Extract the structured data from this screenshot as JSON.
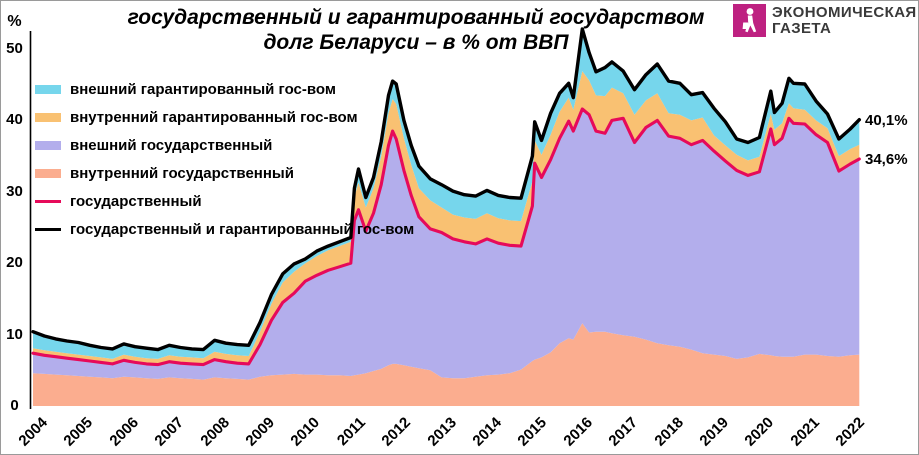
{
  "title": {
    "line1": "государственный и гарантированный государством",
    "line2": "долг Беларуси – в % от ВВП"
  },
  "logo": {
    "text_line1": "ЭКОНОМИЧЕСКАЯ",
    "text_line2": "ГАЗЕТА",
    "square_color": "#BE2181",
    "icon": "walking-person-with-bag"
  },
  "annotations": [
    {
      "text": "40,1%",
      "value": 40.1
    },
    {
      "text": "34,6%",
      "value": 34.6
    }
  ],
  "legend": [
    {
      "id": "external-guaranteed",
      "label": "внешний гарантированный гос-вом",
      "color": "#76D6EC",
      "swatch": "area"
    },
    {
      "id": "internal-guaranteed",
      "label": "внутренний гарантированный гос-вом",
      "color": "#F9C172",
      "swatch": "area"
    },
    {
      "id": "external-gov",
      "label": "внешний государственный",
      "color": "#B3AEEC",
      "swatch": "area"
    },
    {
      "id": "internal-gov",
      "label": "внутренний государственный",
      "color": "#FBAD8F",
      "swatch": "area"
    },
    {
      "id": "gov-line",
      "label": "государственный",
      "color": "#E60A5A",
      "swatch": "line"
    },
    {
      "id": "total-line",
      "label": "государственный и гарантированный гос-вом",
      "color": "#000000",
      "swatch": "line"
    }
  ],
  "chart_data": {
    "type": "area",
    "subtype": "stacked-area-with-total-lines",
    "title": "государственный и гарантированный государством долг Беларуси – в % от ВВП",
    "ylabel": "%",
    "ylim": [
      0,
      50
    ],
    "y_ticks": [
      50,
      40,
      30,
      20,
      10,
      0
    ],
    "x_ticks": [
      "2004",
      "2005",
      "2006",
      "2007",
      "2008",
      "2009",
      "2010",
      "2011",
      "2012",
      "2013",
      "2014",
      "2015",
      "2016",
      "2017",
      "2018",
      "2019",
      "2020",
      "2021",
      "2022"
    ],
    "x_range": [
      2004.0,
      2022.2
    ],
    "grid": false,
    "legend_position": "top-left",
    "x": [
      2004.0,
      2004.25,
      2004.5,
      2004.75,
      2005.0,
      2005.25,
      2005.5,
      2005.75,
      2006.0,
      2006.25,
      2006.5,
      2006.75,
      2007.0,
      2007.25,
      2007.5,
      2007.75,
      2008.0,
      2008.25,
      2008.5,
      2008.75,
      2009.0,
      2009.25,
      2009.5,
      2009.75,
      2010.0,
      2010.25,
      2010.5,
      2010.75,
      2011.0,
      2011.08,
      2011.17,
      2011.33,
      2011.5,
      2011.67,
      2011.83,
      2011.92,
      2012.0,
      2012.17,
      2012.33,
      2012.5,
      2012.75,
      2013.0,
      2013.25,
      2013.5,
      2013.75,
      2014.0,
      2014.25,
      2014.5,
      2014.75,
      2015.0,
      2015.05,
      2015.2,
      2015.4,
      2015.6,
      2015.8,
      2015.9,
      2016.1,
      2016.25,
      2016.4,
      2016.6,
      2016.75,
      2017.0,
      2017.25,
      2017.5,
      2017.75,
      2018.0,
      2018.25,
      2018.5,
      2018.75,
      2019.0,
      2019.25,
      2019.5,
      2019.75,
      2020.0,
      2020.25,
      2020.33,
      2020.5,
      2020.65,
      2020.75,
      2021.0,
      2021.25,
      2021.5,
      2021.75,
      2022.0,
      2022.2
    ],
    "areas": [
      {
        "id": "internal-gov",
        "label": "внутренний государственный",
        "color": "#FBAD8F",
        "values": [
          4.6,
          4.5,
          4.4,
          4.3,
          4.2,
          4.1,
          4.0,
          3.9,
          4.1,
          4.0,
          3.9,
          3.8,
          4.0,
          3.9,
          3.8,
          3.7,
          4.0,
          3.9,
          3.8,
          3.7,
          4.1,
          4.3,
          4.4,
          4.5,
          4.4,
          4.4,
          4.3,
          4.3,
          4.2,
          4.3,
          4.4,
          4.6,
          4.9,
          5.2,
          5.7,
          5.9,
          5.9,
          5.7,
          5.5,
          5.3,
          5.0,
          4.0,
          3.9,
          3.9,
          4.1,
          4.3,
          4.4,
          4.6,
          5.1,
          6.3,
          6.5,
          6.8,
          7.5,
          8.8,
          9.5,
          9.3,
          11.6,
          10.3,
          10.4,
          10.4,
          10.2,
          9.9,
          9.7,
          9.3,
          8.8,
          8.5,
          8.3,
          7.9,
          7.4,
          7.2,
          7.0,
          6.6,
          6.8,
          7.3,
          7.1,
          7.0,
          6.9,
          6.9,
          6.9,
          7.2,
          7.2,
          7.0,
          6.9,
          7.1,
          7.2
        ]
      },
      {
        "id": "external-gov",
        "label": "внешний государственный",
        "color": "#B3AEEC",
        "values": [
          2.8,
          2.6,
          2.5,
          2.4,
          2.3,
          2.2,
          2.1,
          2.0,
          2.3,
          2.1,
          2.0,
          2.0,
          2.2,
          2.1,
          2.1,
          2.1,
          2.5,
          2.3,
          2.2,
          2.2,
          4.5,
          7.7,
          10.1,
          11.3,
          13.1,
          13.9,
          14.7,
          15.2,
          15.8,
          21.7,
          23.1,
          19.9,
          22.1,
          25.8,
          30.8,
          32.6,
          31.5,
          27.3,
          24.0,
          21.2,
          19.8,
          20.3,
          19.5,
          19.1,
          18.6,
          19.1,
          18.4,
          17.9,
          17.3,
          21.7,
          27.5,
          25.2,
          27.0,
          28.7,
          30.4,
          29.2,
          30.0,
          30.5,
          28.1,
          27.8,
          29.8,
          30.4,
          27.2,
          29.7,
          31.2,
          29.3,
          29.2,
          28.7,
          29.8,
          28.5,
          27.3,
          26.4,
          25.5,
          25.5,
          31.7,
          29.6,
          30.6,
          33.4,
          32.7,
          32.3,
          30.8,
          29.9,
          26.0,
          26.8,
          27.4
        ]
      },
      {
        "id": "internal-guaranteed",
        "label": "внутренний гарантированный гос-вом",
        "color": "#F9C172",
        "values": [
          0.7,
          0.7,
          0.7,
          0.7,
          0.7,
          0.7,
          0.7,
          0.7,
          0.8,
          0.8,
          0.8,
          0.8,
          0.9,
          0.9,
          0.9,
          0.9,
          1.1,
          1.1,
          1.1,
          1.1,
          1.8,
          2.3,
          2.8,
          3.0,
          2.5,
          2.7,
          2.8,
          2.9,
          3.0,
          3.3,
          3.8,
          3.3,
          3.5,
          4.0,
          4.5,
          4.5,
          4.9,
          4.5,
          4.3,
          4.0,
          4.0,
          3.5,
          3.4,
          3.4,
          3.5,
          3.6,
          3.5,
          3.5,
          3.5,
          3.5,
          3.2,
          3.2,
          3.5,
          3.7,
          3.3,
          3.0,
          5.3,
          4.8,
          5.0,
          5.2,
          4.6,
          3.5,
          3.9,
          3.8,
          3.8,
          3.2,
          3.3,
          3.4,
          3.2,
          2.2,
          2.2,
          2.2,
          2.1,
          2.1,
          2.1,
          2.1,
          2.1,
          2.1,
          2.1,
          2.0,
          2.0,
          2.0,
          2.1,
          2.1,
          2.0
        ]
      },
      {
        "id": "external-guaranteed",
        "label": "внешний гарантированный гос-вом",
        "color": "#76D6EC",
        "values": [
          2.3,
          2.0,
          1.8,
          1.7,
          1.7,
          1.5,
          1.4,
          1.4,
          1.5,
          1.4,
          1.4,
          1.3,
          1.4,
          1.3,
          1.2,
          1.2,
          1.6,
          1.5,
          1.5,
          1.5,
          1.3,
          1.3,
          1.2,
          1.1,
          0.6,
          0.7,
          0.6,
          0.6,
          0.6,
          1.2,
          1.9,
          1.4,
          1.5,
          2.0,
          2.5,
          2.5,
          2.8,
          2.5,
          2.7,
          3.1,
          3.0,
          3.2,
          3.3,
          3.2,
          3.2,
          3.2,
          3.2,
          3.2,
          3.2,
          3.5,
          2.6,
          2.0,
          3.0,
          2.6,
          2.0,
          1.7,
          5.9,
          3.9,
          3.3,
          4.0,
          3.6,
          3.1,
          3.5,
          3.6,
          4.1,
          4.5,
          4.4,
          3.6,
          3.5,
          3.8,
          3.3,
          2.2,
          2.5,
          2.7,
          3.2,
          2.4,
          2.8,
          3.5,
          3.5,
          3.6,
          2.7,
          2.0,
          2.4,
          2.8,
          3.5
        ]
      }
    ],
    "lines": [
      {
        "id": "gov-line",
        "label": "государственный",
        "color": "#E60A5A",
        "equals_stack_top_of_first_n_areas": 2,
        "end_value": 34.6
      },
      {
        "id": "total-line",
        "label": "государственный и гарантированный гос-вом",
        "color": "#000000",
        "equals_stack_top_of_first_n_areas": 4,
        "end_value": 40.1
      }
    ]
  }
}
